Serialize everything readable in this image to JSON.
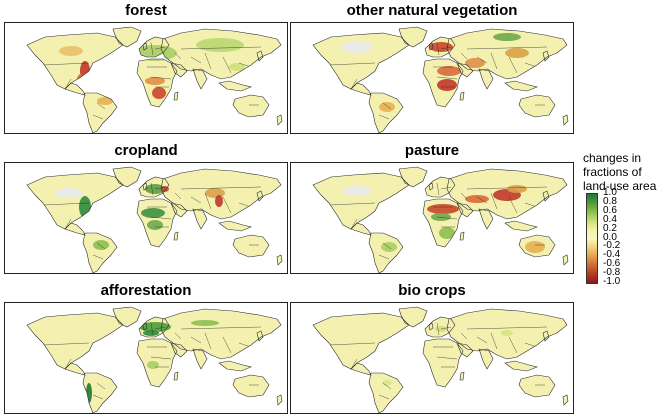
{
  "panels": [
    {
      "title": "forest",
      "pattern": "forest"
    },
    {
      "title": "other natural vegetation",
      "pattern": "onv"
    },
    {
      "title": "cropland",
      "pattern": "cropland"
    },
    {
      "title": "pasture",
      "pattern": "pasture"
    },
    {
      "title": "afforestation",
      "pattern": "afforestation"
    },
    {
      "title": "bio crops",
      "pattern": "bio"
    }
  ],
  "legend": {
    "title_lines": [
      "changes in",
      "fractions of",
      "land-use area"
    ],
    "ticks": [
      "1.0",
      "0.8",
      "0.6",
      "0.4",
      "0.2",
      "0.0",
      "-0.2",
      "-0.4",
      "-0.6",
      "-0.8",
      "-1.0"
    ],
    "colors": [
      "#1d7a35",
      "#4c9c3c",
      "#8cbf50",
      "#c8de72",
      "#f1f2a6",
      "#fbf6c2",
      "#f2d27a",
      "#e3a24c",
      "#d06a32",
      "#b33a26",
      "#8a1a1d"
    ]
  },
  "colors": {
    "land": "#f4f1b0",
    "ocean": "#ffffff",
    "border": "#2a2a2a"
  }
}
